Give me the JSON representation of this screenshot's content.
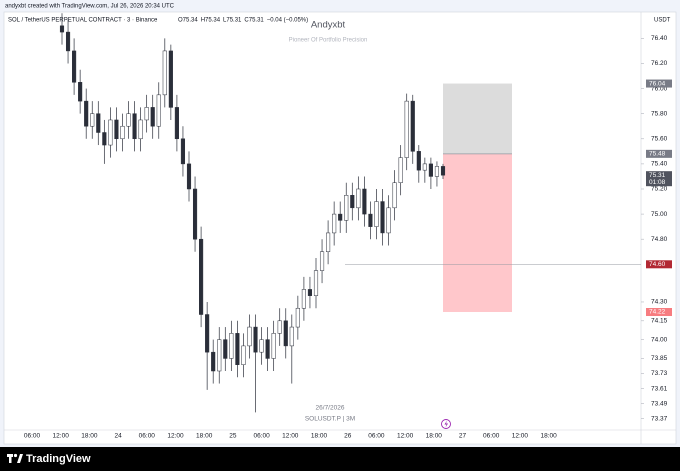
{
  "chart_data": {
    "type": "candlestick",
    "credit": "andyxbt created with TradingView.com, Jul 26, 2026 20:34 UTC",
    "symbol": "SOL / TetherUS PERPETUAL CONTRACT · 3 · Binance",
    "ohlc_legend": [
      "O75.34",
      "H75.34",
      "L75.31",
      "C75.31",
      "−0.04 (−0.05%)"
    ],
    "title": "Andyxbt",
    "subtitle": "Pioneer Of Portfolio Precision",
    "watermark_date": "26/7/2026",
    "watermark_symbol": "SOLUSDT.P | 3M",
    "currency": "USDT",
    "brand": "TradingView",
    "color": "#2a2e39",
    "ylim": [
      73.28,
      76.61
    ],
    "yticks": [
      {
        "value": 76.4,
        "label": "76.40"
      },
      {
        "value": 76.2,
        "label": "76.20"
      },
      {
        "value": 76,
        "label": "76.00"
      },
      {
        "value": 75.8,
        "label": "75.80"
      },
      {
        "value": 75.6,
        "label": "75.60"
      },
      {
        "value": 75.4,
        "label": "75.40"
      },
      {
        "value": 75.2,
        "label": "75.20"
      },
      {
        "value": 75,
        "label": "75.00"
      },
      {
        "value": 74.8,
        "label": "74.80"
      },
      {
        "value": 74.3,
        "label": "74.30"
      },
      {
        "value": 74.15,
        "label": "74.15"
      },
      {
        "value": 74,
        "label": "74.00"
      },
      {
        "value": 73.85,
        "label": "73.85"
      },
      {
        "value": 73.73,
        "label": "73.73"
      },
      {
        "value": 73.61,
        "label": "73.61"
      },
      {
        "value": 73.49,
        "label": "73.49"
      },
      {
        "value": 73.37,
        "label": "73.37"
      }
    ],
    "xtick_labels": [
      "06:00",
      "12:00",
      "18:00",
      "24",
      "06:00",
      "12:00",
      "18:00",
      "25",
      "06:00",
      "12:00",
      "18:00",
      "26",
      "06:00",
      "12:00",
      "18:00",
      "27",
      "06:00",
      "12:00",
      "18:00"
    ],
    "open": [
      76.5,
      76.45,
      76.3,
      76.05,
      75.9,
      75.7,
      75.8,
      75.65,
      75.55,
      75.75,
      75.6,
      75.7,
      75.8,
      75.6,
      75.75,
      75.85,
      75.7,
      75.95,
      76.3,
      75.85,
      75.6,
      75.4,
      75.2,
      74.8,
      74.2,
      73.9,
      73.75,
      74,
      73.85,
      74.05,
      73.8,
      73.95,
      74.1,
      73.9,
      74,
      73.85,
      74.05,
      74.15,
      73.95,
      74.1,
      74.25,
      74.4,
      74.35,
      74.55,
      74.7,
      74.85,
      75,
      74.95,
      75.15,
      75.05,
      75.2,
      75,
      74.9,
      75.1,
      74.85,
      75.05,
      75.25,
      75.45,
      75.9,
      75.5,
      75.35,
      75.4,
      75.3,
      75.38
    ],
    "high": [
      76.6,
      76.55,
      76.4,
      76.15,
      76,
      75.9,
      75.9,
      75.75,
      75.85,
      75.85,
      75.8,
      75.9,
      75.9,
      75.85,
      75.95,
      75.95,
      76.05,
      76.4,
      76.35,
      75.95,
      75.7,
      75.5,
      75.3,
      74.9,
      74.3,
      74,
      74.1,
      74.1,
      74.15,
      74.15,
      74.05,
      74.2,
      74.2,
      74.1,
      74.1,
      74.15,
      74.25,
      74.25,
      74.2,
      74.35,
      74.5,
      74.5,
      74.65,
      74.8,
      74.95,
      75.1,
      75.1,
      75.25,
      75.25,
      75.3,
      75.3,
      75.1,
      75.2,
      75.2,
      75.15,
      75.35,
      75.55,
      75.96,
      75.95,
      75.55,
      75.45,
      75.45,
      75.42,
      75.4
    ],
    "low": [
      76.35,
      76.2,
      75.95,
      75.8,
      75.6,
      75.6,
      75.55,
      75.4,
      75.45,
      75.5,
      75.5,
      75.6,
      75.5,
      75.5,
      75.65,
      75.6,
      75.6,
      75.85,
      75.75,
      75.5,
      75.3,
      75.1,
      74.7,
      74.1,
      73.6,
      73.65,
      73.65,
      73.75,
      73.75,
      73.7,
      73.7,
      73.85,
      73.42,
      73.8,
      73.75,
      73.75,
      73.95,
      73.85,
      73.65,
      74,
      74.15,
      74.25,
      74.25,
      74.45,
      74.6,
      74.75,
      74.85,
      74.85,
      74.95,
      74.95,
      74.9,
      74.8,
      74.8,
      74.75,
      74.75,
      74.95,
      75.15,
      75.35,
      75.4,
      75.25,
      75.25,
      75.2,
      75.22,
      75.28
    ],
    "close": [
      76.45,
      76.3,
      76.05,
      75.9,
      75.7,
      75.8,
      75.65,
      75.55,
      75.75,
      75.6,
      75.7,
      75.8,
      75.6,
      75.75,
      75.85,
      75.7,
      75.95,
      76.3,
      75.85,
      75.6,
      75.4,
      75.2,
      74.8,
      74.2,
      73.9,
      73.75,
      74,
      73.85,
      74.05,
      73.8,
      73.95,
      74.1,
      73.9,
      74,
      73.85,
      74.05,
      74.15,
      73.95,
      74.1,
      74.25,
      74.4,
      74.35,
      74.55,
      74.7,
      74.85,
      75,
      74.95,
      75.15,
      75.05,
      75.2,
      75,
      74.9,
      75.1,
      74.85,
      75.05,
      75.25,
      75.45,
      75.9,
      75.5,
      75.35,
      75.4,
      75.3,
      75.38,
      75.31
    ],
    "price_line": {
      "value": 74.6,
      "label": "74.60",
      "color": "#b22833"
    },
    "position": {
      "target": {
        "value": 76.04,
        "label": "76.04",
        "color": "#787b86"
      },
      "entry": {
        "value": 75.48,
        "label": "75.48",
        "color": "#787b86"
      },
      "stop": {
        "value": 74.22,
        "label": "74.22",
        "color": "#f77c80"
      },
      "profit_color": "#dcdcdc",
      "loss_color": "#ffc7cb"
    },
    "last_price": {
      "value": 75.31,
      "label": "75.31",
      "countdown": "01:08",
      "color": "#50535e"
    }
  }
}
